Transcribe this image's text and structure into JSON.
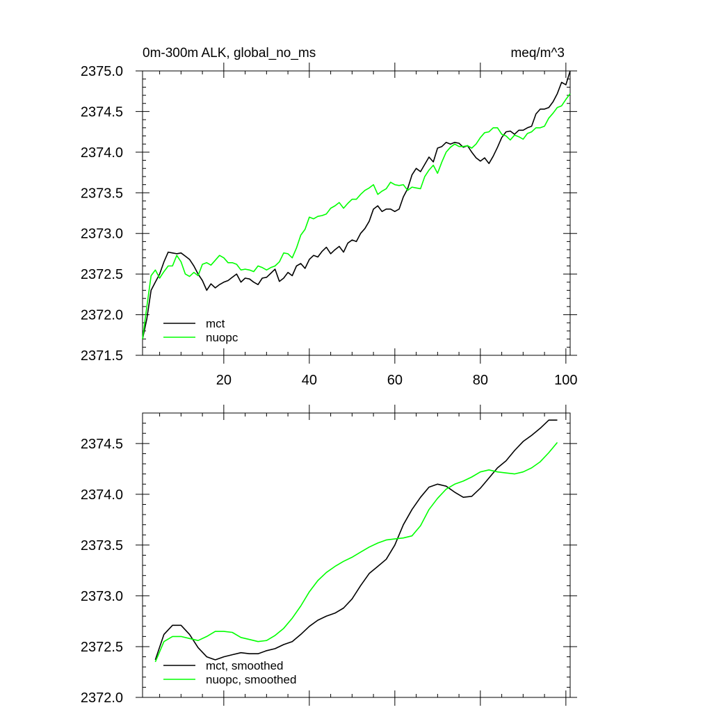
{
  "chart_data": [
    {
      "type": "line",
      "title": "0m-300m ALK, global_no_ms",
      "units": "meq/m^3",
      "xlabel": "",
      "ylabel": "",
      "xlim": [
        1,
        101
      ],
      "ylim": [
        2371.5,
        2375.0
      ],
      "xticks": [
        20,
        40,
        60,
        80,
        100
      ],
      "xtick_labels": [
        "20",
        "40",
        "60",
        "80",
        "100"
      ],
      "yticks": [
        2371.5,
        2372.0,
        2372.5,
        2373.0,
        2373.5,
        2374.0,
        2374.5,
        2375.0
      ],
      "ytick_labels": [
        "2371.5",
        "2372.0",
        "2372.5",
        "2373.0",
        "2373.5",
        "2374.0",
        "2374.5",
        "2375.0"
      ],
      "legend_location": "bottom-left",
      "series": [
        {
          "name": "mct",
          "color": "#000000",
          "x": [
            1,
            2,
            3,
            4,
            5,
            6,
            7,
            8,
            9,
            10,
            11,
            12,
            13,
            14,
            15,
            16,
            17,
            18,
            19,
            20,
            21,
            22,
            23,
            24,
            25,
            26,
            27,
            28,
            29,
            30,
            31,
            32,
            33,
            34,
            35,
            36,
            37,
            38,
            39,
            40,
            41,
            42,
            43,
            44,
            45,
            46,
            47,
            48,
            49,
            50,
            51,
            52,
            53,
            54,
            55,
            56,
            57,
            58,
            59,
            60,
            61,
            62,
            63,
            64,
            65,
            66,
            67,
            68,
            69,
            70,
            71,
            72,
            73,
            74,
            75,
            76,
            77,
            78,
            79,
            80,
            81,
            82,
            83,
            84,
            85,
            86,
            87,
            88,
            89,
            90,
            91,
            92,
            93,
            94,
            95,
            96,
            97,
            98,
            99,
            100,
            101
          ],
          "values": [
            2371.7,
            2371.95,
            2372.3,
            2372.4,
            2372.5,
            2372.65,
            2372.77,
            2372.76,
            2372.75,
            2372.76,
            2372.72,
            2372.68,
            2372.6,
            2372.5,
            2372.42,
            2372.3,
            2372.38,
            2372.33,
            2372.37,
            2372.4,
            2372.42,
            2372.46,
            2372.5,
            2372.4,
            2372.45,
            2372.44,
            2372.4,
            2372.37,
            2372.45,
            2372.46,
            2372.51,
            2372.56,
            2372.41,
            2372.45,
            2372.52,
            2372.48,
            2372.6,
            2372.63,
            2372.57,
            2372.68,
            2372.73,
            2372.71,
            2372.78,
            2372.83,
            2372.75,
            2372.8,
            2372.84,
            2372.77,
            2372.88,
            2372.92,
            2372.9,
            2373.0,
            2373.06,
            2373.15,
            2373.3,
            2373.34,
            2373.27,
            2373.3,
            2373.3,
            2373.27,
            2373.3,
            2373.45,
            2373.55,
            2373.72,
            2373.8,
            2373.76,
            2373.85,
            2373.94,
            2373.88,
            2374.05,
            2374.07,
            2374.12,
            2374.1,
            2374.12,
            2374.11,
            2374.06,
            2374.08,
            2374.0,
            2373.93,
            2373.89,
            2373.93,
            2373.86,
            2373.95,
            2374.06,
            2374.18,
            2374.25,
            2374.26,
            2374.22,
            2374.27,
            2374.27,
            2374.3,
            2374.32,
            2374.47,
            2374.53,
            2374.53,
            2374.55,
            2374.62,
            2374.72,
            2374.86,
            2374.83,
            2375.0
          ]
        },
        {
          "name": "nuopc",
          "color": "#00ff00",
          "x": [
            1,
            2,
            3,
            4,
            5,
            6,
            7,
            8,
            9,
            10,
            11,
            12,
            13,
            14,
            15,
            16,
            17,
            18,
            19,
            20,
            21,
            22,
            23,
            24,
            25,
            26,
            27,
            28,
            29,
            30,
            31,
            32,
            33,
            34,
            35,
            36,
            37,
            38,
            39,
            40,
            41,
            42,
            43,
            44,
            45,
            46,
            47,
            48,
            49,
            50,
            51,
            52,
            53,
            54,
            55,
            56,
            57,
            58,
            59,
            60,
            61,
            62,
            63,
            64,
            65,
            66,
            67,
            68,
            69,
            70,
            71,
            72,
            73,
            74,
            75,
            76,
            77,
            78,
            79,
            80,
            81,
            82,
            83,
            84,
            85,
            86,
            87,
            88,
            89,
            90,
            91,
            92,
            93,
            94,
            95,
            96,
            97,
            98,
            99,
            100,
            101
          ],
          "values": [
            2371.7,
            2372.1,
            2372.48,
            2372.55,
            2372.45,
            2372.53,
            2372.6,
            2372.6,
            2372.73,
            2372.65,
            2372.5,
            2372.47,
            2372.52,
            2372.48,
            2372.62,
            2372.64,
            2372.61,
            2372.67,
            2372.73,
            2372.7,
            2372.64,
            2372.64,
            2372.62,
            2372.55,
            2372.56,
            2372.55,
            2372.53,
            2372.6,
            2372.58,
            2372.55,
            2372.58,
            2372.6,
            2372.65,
            2372.76,
            2372.75,
            2372.7,
            2372.82,
            2372.98,
            2373.05,
            2373.2,
            2373.18,
            2373.21,
            2373.22,
            2373.24,
            2373.31,
            2373.34,
            2373.38,
            2373.31,
            2373.37,
            2373.42,
            2373.42,
            2373.48,
            2373.53,
            2373.56,
            2373.6,
            2373.48,
            2373.52,
            2373.55,
            2373.63,
            2373.6,
            2373.59,
            2373.6,
            2373.53,
            2373.57,
            2373.56,
            2373.55,
            2373.7,
            2373.78,
            2373.84,
            2373.74,
            2373.88,
            2374.0,
            2374.06,
            2374.1,
            2374.07,
            2374.07,
            2374.08,
            2374.05,
            2374.1,
            2374.18,
            2374.24,
            2374.25,
            2374.3,
            2374.3,
            2374.22,
            2374.2,
            2374.15,
            2374.21,
            2374.19,
            2374.16,
            2374.23,
            2374.25,
            2374.3,
            2374.3,
            2374.32,
            2374.42,
            2374.48,
            2374.55,
            2374.57,
            2374.65,
            2374.72
          ]
        }
      ]
    },
    {
      "type": "line",
      "title": "",
      "xlabel": "",
      "ylabel": "",
      "xlim": [
        1,
        101
      ],
      "ylim": [
        2372.0,
        2374.8
      ],
      "xticks": [
        20,
        40,
        60,
        80,
        100
      ],
      "xtick_labels": [],
      "yticks": [
        2372.0,
        2372.5,
        2373.0,
        2373.5,
        2374.0,
        2374.5
      ],
      "ytick_labels": [
        "2372.0",
        "2372.5",
        "2373.0",
        "2373.5",
        "2374.0",
        "2374.5"
      ],
      "legend_location": "bottom-left",
      "series": [
        {
          "name": "mct, smoothed",
          "color": "#000000",
          "x": [
            4,
            6,
            8,
            10,
            12,
            14,
            16,
            18,
            20,
            22,
            24,
            26,
            28,
            30,
            32,
            34,
            36,
            38,
            40,
            42,
            44,
            46,
            48,
            50,
            52,
            54,
            56,
            58,
            60,
            62,
            64,
            66,
            68,
            70,
            72,
            74,
            76,
            78,
            80,
            82,
            84,
            86,
            88,
            90,
            92,
            94,
            96,
            98
          ],
          "values": [
            2372.37,
            2372.62,
            2372.71,
            2372.71,
            2372.62,
            2372.49,
            2372.4,
            2372.37,
            2372.4,
            2372.42,
            2372.44,
            2372.43,
            2372.43,
            2372.46,
            2372.48,
            2372.52,
            2372.55,
            2372.62,
            2372.7,
            2372.76,
            2372.8,
            2372.83,
            2372.88,
            2372.97,
            2373.1,
            2373.22,
            2373.29,
            2373.36,
            2373.5,
            2373.7,
            2373.85,
            2373.97,
            2374.07,
            2374.1,
            2374.08,
            2374.02,
            2373.97,
            2373.98,
            2374.06,
            2374.16,
            2374.26,
            2374.33,
            2374.43,
            2374.52,
            2374.58,
            2374.65,
            2374.73,
            2374.73
          ]
        },
        {
          "name": "nuopc, smoothed",
          "color": "#00ff00",
          "x": [
            4,
            6,
            8,
            10,
            12,
            14,
            16,
            18,
            20,
            22,
            24,
            26,
            28,
            30,
            32,
            34,
            36,
            38,
            40,
            42,
            44,
            46,
            48,
            50,
            52,
            54,
            56,
            58,
            60,
            62,
            64,
            66,
            68,
            70,
            72,
            74,
            76,
            78,
            80,
            82,
            84,
            86,
            88,
            90,
            92,
            94,
            96,
            98
          ],
          "values": [
            2372.35,
            2372.55,
            2372.6,
            2372.6,
            2372.58,
            2372.56,
            2372.6,
            2372.65,
            2372.65,
            2372.64,
            2372.59,
            2372.57,
            2372.55,
            2372.56,
            2372.61,
            2372.68,
            2372.78,
            2372.9,
            2373.04,
            2373.15,
            2373.23,
            2373.29,
            2373.34,
            2373.38,
            2373.43,
            2373.48,
            2373.52,
            2373.55,
            2373.56,
            2373.57,
            2373.59,
            2373.69,
            2373.85,
            2373.96,
            2374.05,
            2374.1,
            2374.13,
            2374.17,
            2374.22,
            2374.24,
            2374.22,
            2374.21,
            2374.2,
            2374.22,
            2374.26,
            2374.32,
            2374.41,
            2374.51
          ]
        }
      ]
    }
  ]
}
